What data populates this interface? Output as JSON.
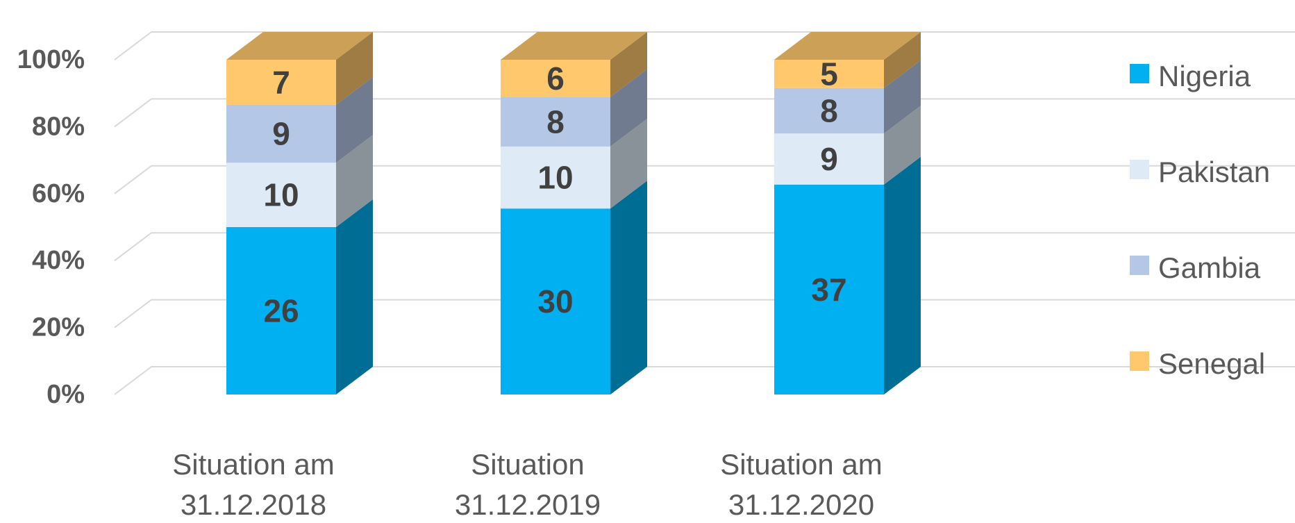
{
  "chart_data": {
    "type": "bar",
    "stacked": "percent",
    "three_d": true,
    "categories": [
      [
        "Situation am",
        "31.12.2018"
      ],
      [
        "Situation",
        "31.12.2019"
      ],
      [
        "Situation am",
        "31.12.2020"
      ]
    ],
    "series": [
      {
        "name": "Nigeria",
        "color": "#00b0f0",
        "values": [
          26,
          30,
          37
        ]
      },
      {
        "name": "Pakistan",
        "color": "#deebf7",
        "values": [
          10,
          10,
          9
        ]
      },
      {
        "name": "Gambia",
        "color": "#b4c7e7",
        "values": [
          9,
          8,
          8
        ]
      },
      {
        "name": "Senegal",
        "color": "#ffc86c",
        "values": [
          7,
          6,
          5
        ]
      }
    ],
    "y_ticks": [
      "0%",
      "20%",
      "40%",
      "60%",
      "80%",
      "100%"
    ],
    "ylim": [
      0,
      100
    ],
    "grid": true,
    "legend": "right",
    "title": "",
    "xlabel": "",
    "ylabel": ""
  }
}
